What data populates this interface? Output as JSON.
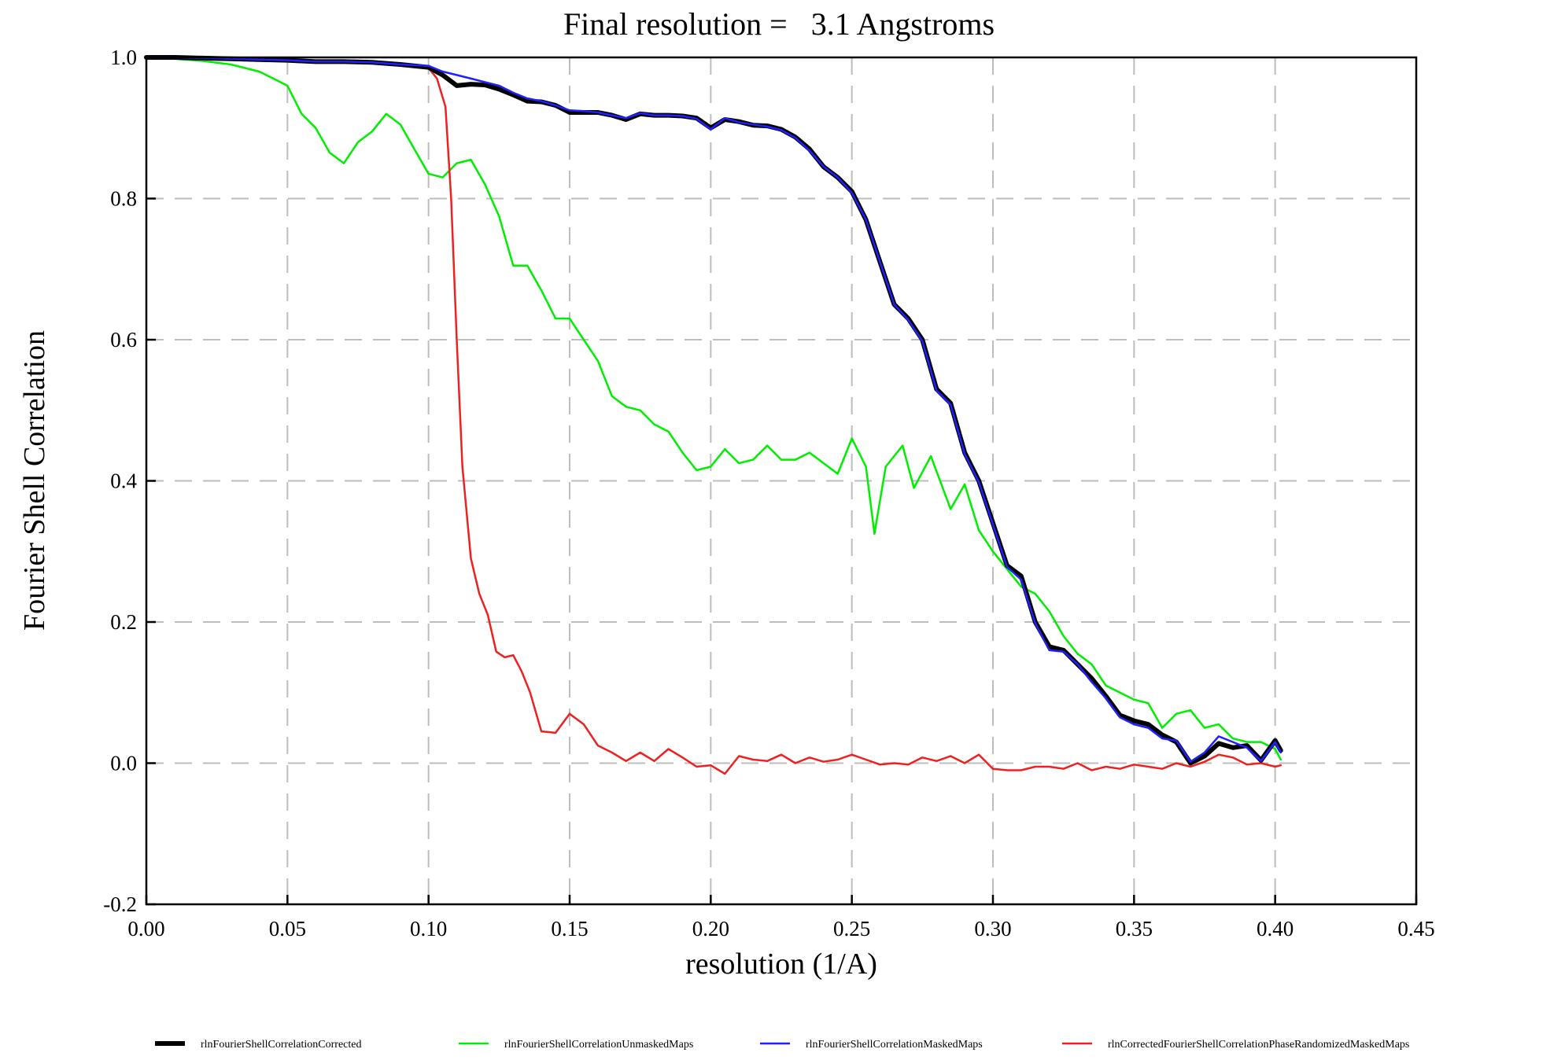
{
  "chart_data": {
    "type": "line",
    "title": "Final resolution =   3.1 Angstroms",
    "xlabel": "resolution (1/A)",
    "ylabel": "Fourier Shell Correlation",
    "xlim": [
      0.0,
      0.45
    ],
    "ylim": [
      -0.2,
      1.0
    ],
    "x_ticks": [
      "0.00",
      "0.05",
      "0.10",
      "0.15",
      "0.20",
      "0.25",
      "0.30",
      "0.35",
      "0.40",
      "0.45"
    ],
    "y_ticks": [
      "-0.2",
      "0.0",
      "0.2",
      "0.4",
      "0.6",
      "0.8",
      "1.0"
    ],
    "grid": true,
    "legend_position": "bottom",
    "series": [
      {
        "name": "rlnFourierShellCorrelationCorrected",
        "color": "#000000",
        "points": [
          [
            0.0,
            1.0
          ],
          [
            0.01,
            1.0
          ],
          [
            0.02,
            0.999
          ],
          [
            0.03,
            0.998
          ],
          [
            0.04,
            0.997
          ],
          [
            0.05,
            0.996
          ],
          [
            0.06,
            0.994
          ],
          [
            0.07,
            0.994
          ],
          [
            0.08,
            0.993
          ],
          [
            0.09,
            0.99
          ],
          [
            0.1,
            0.986
          ],
          [
            0.105,
            0.975
          ],
          [
            0.11,
            0.96
          ],
          [
            0.115,
            0.962
          ],
          [
            0.12,
            0.961
          ],
          [
            0.125,
            0.955
          ],
          [
            0.13,
            0.947
          ],
          [
            0.135,
            0.938
          ],
          [
            0.14,
            0.937
          ],
          [
            0.145,
            0.932
          ],
          [
            0.15,
            0.922
          ],
          [
            0.155,
            0.922
          ],
          [
            0.16,
            0.922
          ],
          [
            0.165,
            0.918
          ],
          [
            0.17,
            0.912
          ],
          [
            0.175,
            0.92
          ],
          [
            0.18,
            0.918
          ],
          [
            0.185,
            0.918
          ],
          [
            0.19,
            0.917
          ],
          [
            0.195,
            0.914
          ],
          [
            0.2,
            0.9
          ],
          [
            0.205,
            0.912
          ],
          [
            0.21,
            0.909
          ],
          [
            0.215,
            0.904
          ],
          [
            0.22,
            0.903
          ],
          [
            0.225,
            0.898
          ],
          [
            0.23,
            0.887
          ],
          [
            0.235,
            0.87
          ],
          [
            0.24,
            0.845
          ],
          [
            0.245,
            0.83
          ],
          [
            0.25,
            0.81
          ],
          [
            0.255,
            0.77
          ],
          [
            0.26,
            0.71
          ],
          [
            0.265,
            0.65
          ],
          [
            0.27,
            0.63
          ],
          [
            0.275,
            0.6
          ],
          [
            0.28,
            0.53
          ],
          [
            0.285,
            0.51
          ],
          [
            0.29,
            0.44
          ],
          [
            0.295,
            0.4
          ],
          [
            0.3,
            0.34
          ],
          [
            0.305,
            0.28
          ],
          [
            0.31,
            0.265
          ],
          [
            0.315,
            0.2
          ],
          [
            0.32,
            0.165
          ],
          [
            0.325,
            0.16
          ],
          [
            0.33,
            0.14
          ],
          [
            0.335,
            0.12
          ],
          [
            0.34,
            0.095
          ],
          [
            0.345,
            0.068
          ],
          [
            0.35,
            0.06
          ],
          [
            0.355,
            0.055
          ],
          [
            0.36,
            0.04
          ],
          [
            0.365,
            0.03
          ],
          [
            0.37,
            0.0
          ],
          [
            0.375,
            0.01
          ],
          [
            0.38,
            0.028
          ],
          [
            0.385,
            0.022
          ],
          [
            0.39,
            0.025
          ],
          [
            0.395,
            0.004
          ],
          [
            0.4,
            0.032
          ],
          [
            0.402,
            0.018
          ]
        ]
      },
      {
        "name": "rlnFourierShellCorrelationUnmaskedMaps",
        "color": "#00ee00",
        "points": [
          [
            0.0,
            1.0
          ],
          [
            0.01,
            0.998
          ],
          [
            0.02,
            0.995
          ],
          [
            0.03,
            0.99
          ],
          [
            0.035,
            0.985
          ],
          [
            0.04,
            0.98
          ],
          [
            0.045,
            0.97
          ],
          [
            0.05,
            0.96
          ],
          [
            0.055,
            0.92
          ],
          [
            0.06,
            0.9
          ],
          [
            0.065,
            0.865
          ],
          [
            0.07,
            0.85
          ],
          [
            0.075,
            0.88
          ],
          [
            0.08,
            0.895
          ],
          [
            0.085,
            0.92
          ],
          [
            0.09,
            0.905
          ],
          [
            0.095,
            0.87
          ],
          [
            0.1,
            0.835
          ],
          [
            0.105,
            0.83
          ],
          [
            0.11,
            0.85
          ],
          [
            0.115,
            0.855
          ],
          [
            0.12,
            0.82
          ],
          [
            0.125,
            0.775
          ],
          [
            0.13,
            0.705
          ],
          [
            0.135,
            0.705
          ],
          [
            0.14,
            0.67
          ],
          [
            0.145,
            0.63
          ],
          [
            0.15,
            0.63
          ],
          [
            0.155,
            0.6
          ],
          [
            0.16,
            0.57
          ],
          [
            0.165,
            0.52
          ],
          [
            0.17,
            0.505
          ],
          [
            0.175,
            0.5
          ],
          [
            0.18,
            0.48
          ],
          [
            0.185,
            0.47
          ],
          [
            0.19,
            0.44
          ],
          [
            0.195,
            0.415
          ],
          [
            0.2,
            0.42
          ],
          [
            0.205,
            0.445
          ],
          [
            0.21,
            0.425
          ],
          [
            0.215,
            0.43
          ],
          [
            0.22,
            0.45
          ],
          [
            0.225,
            0.43
          ],
          [
            0.23,
            0.43
          ],
          [
            0.235,
            0.44
          ],
          [
            0.24,
            0.425
          ],
          [
            0.245,
            0.41
          ],
          [
            0.25,
            0.46
          ],
          [
            0.255,
            0.42
          ],
          [
            0.258,
            0.325
          ],
          [
            0.262,
            0.42
          ],
          [
            0.268,
            0.45
          ],
          [
            0.272,
            0.39
          ],
          [
            0.278,
            0.435
          ],
          [
            0.285,
            0.36
          ],
          [
            0.29,
            0.395
          ],
          [
            0.295,
            0.33
          ],
          [
            0.3,
            0.3
          ],
          [
            0.305,
            0.275
          ],
          [
            0.31,
            0.25
          ],
          [
            0.315,
            0.24
          ],
          [
            0.32,
            0.215
          ],
          [
            0.325,
            0.18
          ],
          [
            0.33,
            0.155
          ],
          [
            0.335,
            0.14
          ],
          [
            0.34,
            0.11
          ],
          [
            0.345,
            0.1
          ],
          [
            0.35,
            0.09
          ],
          [
            0.355,
            0.085
          ],
          [
            0.36,
            0.05
          ],
          [
            0.365,
            0.07
          ],
          [
            0.37,
            0.075
          ],
          [
            0.375,
            0.05
          ],
          [
            0.38,
            0.055
          ],
          [
            0.385,
            0.035
          ],
          [
            0.39,
            0.03
          ],
          [
            0.395,
            0.03
          ],
          [
            0.4,
            0.02
          ],
          [
            0.402,
            0.005
          ]
        ]
      },
      {
        "name": "rlnFourierShellCorrelationMaskedMaps",
        "color": "#2020ff",
        "points": [
          [
            0.0,
            1.0
          ],
          [
            0.01,
            1.0
          ],
          [
            0.02,
            0.999
          ],
          [
            0.03,
            0.998
          ],
          [
            0.04,
            0.997
          ],
          [
            0.05,
            0.996
          ],
          [
            0.06,
            0.994
          ],
          [
            0.07,
            0.994
          ],
          [
            0.08,
            0.993
          ],
          [
            0.09,
            0.99
          ],
          [
            0.1,
            0.988
          ],
          [
            0.105,
            0.98
          ],
          [
            0.11,
            0.975
          ],
          [
            0.115,
            0.97
          ],
          [
            0.12,
            0.965
          ],
          [
            0.125,
            0.96
          ],
          [
            0.13,
            0.95
          ],
          [
            0.135,
            0.942
          ],
          [
            0.14,
            0.938
          ],
          [
            0.145,
            0.932
          ],
          [
            0.15,
            0.925
          ],
          [
            0.155,
            0.924
          ],
          [
            0.16,
            0.922
          ],
          [
            0.165,
            0.918
          ],
          [
            0.17,
            0.914
          ],
          [
            0.175,
            0.921
          ],
          [
            0.18,
            0.918
          ],
          [
            0.185,
            0.918
          ],
          [
            0.19,
            0.917
          ],
          [
            0.195,
            0.913
          ],
          [
            0.2,
            0.898
          ],
          [
            0.205,
            0.914
          ],
          [
            0.21,
            0.908
          ],
          [
            0.215,
            0.905
          ],
          [
            0.22,
            0.902
          ],
          [
            0.225,
            0.897
          ],
          [
            0.23,
            0.886
          ],
          [
            0.235,
            0.868
          ],
          [
            0.24,
            0.845
          ],
          [
            0.245,
            0.83
          ],
          [
            0.25,
            0.808
          ],
          [
            0.255,
            0.77
          ],
          [
            0.26,
            0.71
          ],
          [
            0.265,
            0.65
          ],
          [
            0.27,
            0.628
          ],
          [
            0.275,
            0.598
          ],
          [
            0.28,
            0.528
          ],
          [
            0.285,
            0.508
          ],
          [
            0.29,
            0.438
          ],
          [
            0.295,
            0.398
          ],
          [
            0.3,
            0.338
          ],
          [
            0.305,
            0.278
          ],
          [
            0.31,
            0.26
          ],
          [
            0.315,
            0.198
          ],
          [
            0.32,
            0.16
          ],
          [
            0.325,
            0.158
          ],
          [
            0.33,
            0.14
          ],
          [
            0.335,
            0.115
          ],
          [
            0.34,
            0.092
          ],
          [
            0.345,
            0.065
          ],
          [
            0.35,
            0.055
          ],
          [
            0.355,
            0.05
          ],
          [
            0.36,
            0.035
          ],
          [
            0.365,
            0.032
          ],
          [
            0.37,
            0.002
          ],
          [
            0.375,
            0.015
          ],
          [
            0.38,
            0.038
          ],
          [
            0.385,
            0.03
          ],
          [
            0.39,
            0.022
          ],
          [
            0.395,
            0.003
          ],
          [
            0.4,
            0.03
          ],
          [
            0.402,
            0.015
          ]
        ]
      },
      {
        "name": "rlnCorrectedFourierShellCorrelationPhaseRandomizedMaskedMaps",
        "color": "#ee2020",
        "points": [
          [
            0.0,
            1.0
          ],
          [
            0.01,
            1.0
          ],
          [
            0.02,
            0.999
          ],
          [
            0.03,
            0.998
          ],
          [
            0.04,
            0.997
          ],
          [
            0.05,
            0.996
          ],
          [
            0.06,
            0.994
          ],
          [
            0.07,
            0.994
          ],
          [
            0.08,
            0.993
          ],
          [
            0.09,
            0.99
          ],
          [
            0.095,
            0.988
          ],
          [
            0.1,
            0.985
          ],
          [
            0.103,
            0.97
          ],
          [
            0.106,
            0.93
          ],
          [
            0.108,
            0.8
          ],
          [
            0.11,
            0.6
          ],
          [
            0.112,
            0.42
          ],
          [
            0.115,
            0.29
          ],
          [
            0.118,
            0.24
          ],
          [
            0.121,
            0.21
          ],
          [
            0.124,
            0.158
          ],
          [
            0.127,
            0.15
          ],
          [
            0.13,
            0.153
          ],
          [
            0.133,
            0.13
          ],
          [
            0.136,
            0.1
          ],
          [
            0.14,
            0.045
          ],
          [
            0.145,
            0.043
          ],
          [
            0.15,
            0.07
          ],
          [
            0.155,
            0.055
          ],
          [
            0.16,
            0.025
          ],
          [
            0.165,
            0.015
          ],
          [
            0.17,
            0.003
          ],
          [
            0.175,
            0.015
          ],
          [
            0.18,
            0.003
          ],
          [
            0.185,
            0.02
          ],
          [
            0.19,
            0.008
          ],
          [
            0.195,
            -0.005
          ],
          [
            0.2,
            -0.003
          ],
          [
            0.205,
            -0.015
          ],
          [
            0.21,
            0.01
          ],
          [
            0.215,
            0.005
          ],
          [
            0.22,
            0.003
          ],
          [
            0.225,
            0.012
          ],
          [
            0.23,
            0.0
          ],
          [
            0.235,
            0.008
          ],
          [
            0.24,
            0.002
          ],
          [
            0.245,
            0.005
          ],
          [
            0.25,
            0.012
          ],
          [
            0.255,
            0.005
          ],
          [
            0.26,
            -0.002
          ],
          [
            0.265,
            0.0
          ],
          [
            0.27,
            -0.002
          ],
          [
            0.275,
            0.008
          ],
          [
            0.28,
            0.003
          ],
          [
            0.285,
            0.01
          ],
          [
            0.29,
            0.0
          ],
          [
            0.295,
            0.012
          ],
          [
            0.3,
            -0.008
          ],
          [
            0.305,
            -0.01
          ],
          [
            0.31,
            -0.01
          ],
          [
            0.315,
            -0.005
          ],
          [
            0.32,
            -0.005
          ],
          [
            0.325,
            -0.008
          ],
          [
            0.33,
            0.0
          ],
          [
            0.335,
            -0.01
          ],
          [
            0.34,
            -0.005
          ],
          [
            0.345,
            -0.008
          ],
          [
            0.35,
            -0.002
          ],
          [
            0.355,
            -0.005
          ],
          [
            0.36,
            -0.008
          ],
          [
            0.365,
            0.0
          ],
          [
            0.37,
            -0.005
          ],
          [
            0.375,
            0.002
          ],
          [
            0.38,
            0.012
          ],
          [
            0.385,
            0.008
          ],
          [
            0.39,
            -0.002
          ],
          [
            0.395,
            0.0
          ],
          [
            0.4,
            -0.005
          ],
          [
            0.402,
            -0.003
          ]
        ]
      }
    ]
  }
}
